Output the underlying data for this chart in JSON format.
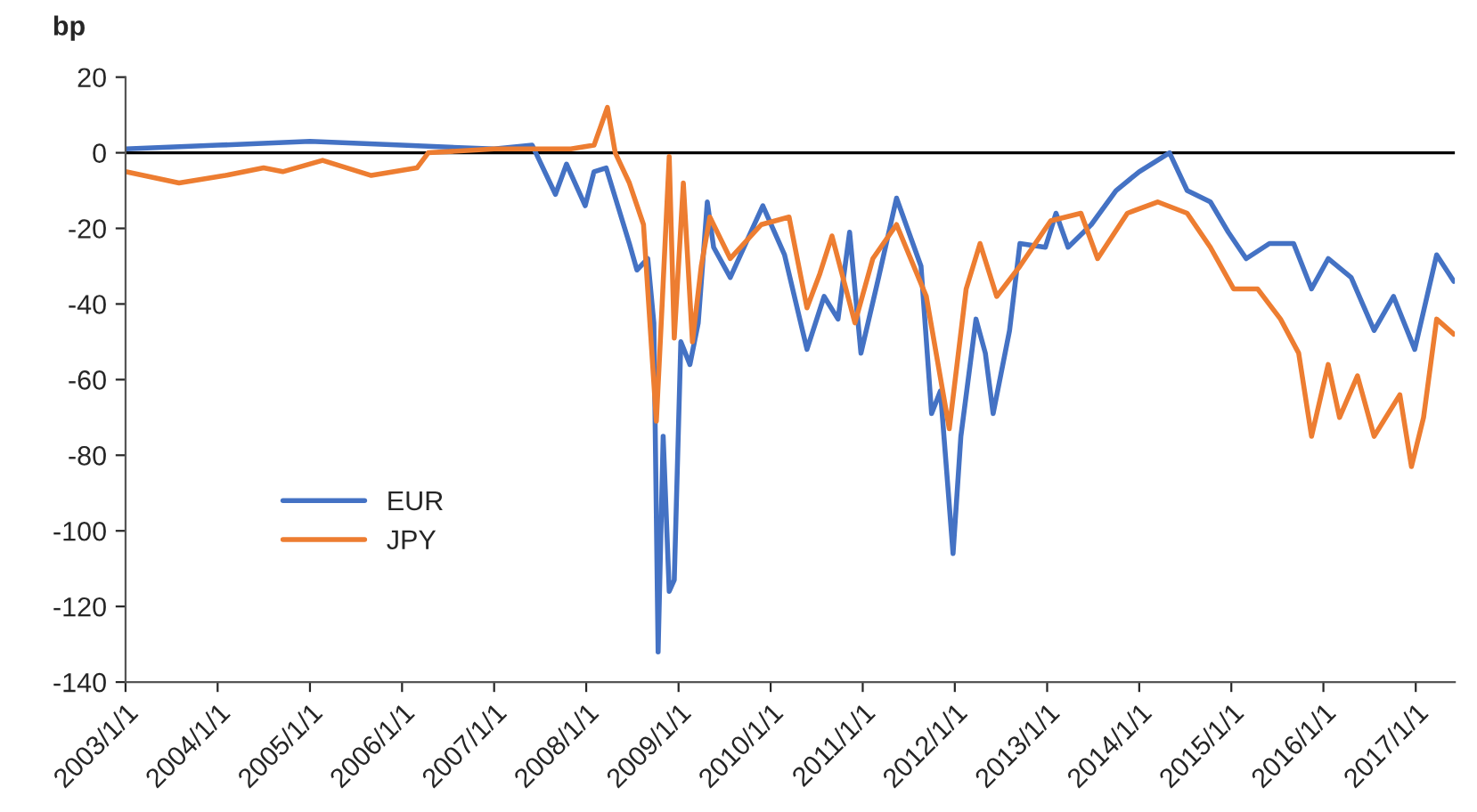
{
  "chart_data": {
    "type": "line",
    "ylabel": "bp",
    "xlim": [
      "2003-01-01",
      "2017-06-05"
    ],
    "ylim": [
      -140,
      20
    ],
    "yticks": [
      -140,
      -120,
      -100,
      -80,
      -60,
      -40,
      -20,
      0,
      20
    ],
    "xticks": [
      {
        "value": "2003-01-01",
        "label": "2003/1/1"
      },
      {
        "value": "2004-01-01",
        "label": "2004/1/1"
      },
      {
        "value": "2005-01-01",
        "label": "2005/1/1"
      },
      {
        "value": "2006-01-01",
        "label": "2006/1/1"
      },
      {
        "value": "2007-01-01",
        "label": "2007/1/1"
      },
      {
        "value": "2008-01-01",
        "label": "2008/1/1"
      },
      {
        "value": "2009-01-01",
        "label": "2009/1/1"
      },
      {
        "value": "2010-01-01",
        "label": "2010/1/1"
      },
      {
        "value": "2011-01-01",
        "label": "2011/1/1"
      },
      {
        "value": "2012-01-01",
        "label": "2012/1/1"
      },
      {
        "value": "2013-01-01",
        "label": "2013/1/1"
      },
      {
        "value": "2014-01-01",
        "label": "2014/1/1"
      },
      {
        "value": "2015-01-01",
        "label": "2015/1/1"
      },
      {
        "value": "2016-01-01",
        "label": "2016/1/1"
      },
      {
        "value": "2017-01-01",
        "label": "2017/1/1"
      }
    ],
    "grid": false,
    "legend": "bottom left",
    "marker": "none",
    "line_style": "solid",
    "ref_lines": [
      {
        "axis": "y",
        "value": 0,
        "color": "#000000"
      }
    ],
    "series": [
      {
        "name": "EUR",
        "color": "#4472c4",
        "x": [
          "2003-01-01",
          "2004-01-01",
          "2005-01-01",
          "2006-01-01",
          "2007-01-01",
          "2007-06-01",
          "2007-09-01",
          "2007-10-15",
          "2007-12-28",
          "2008-02-01",
          "2008-03-20",
          "2008-05-05",
          "2008-06-20",
          "2008-07-20",
          "2008-09-01",
          "2008-09-25",
          "2008-10-12",
          "2008-11-01",
          "2008-11-25",
          "2008-12-15",
          "2009-01-10",
          "2009-02-15",
          "2009-03-20",
          "2009-04-25",
          "2009-05-20",
          "2009-07-25",
          "2009-12-01",
          "2010-02-25",
          "2010-05-25",
          "2010-08-01",
          "2010-09-25",
          "2010-11-10",
          "2010-12-25",
          "2011-03-05",
          "2011-05-15",
          "2011-08-20",
          "2011-10-01",
          "2011-11-05",
          "2011-12-25",
          "2012-01-25",
          "2012-03-25",
          "2012-05-01",
          "2012-06-01",
          "2012-08-05",
          "2012-09-15",
          "2012-12-25",
          "2013-02-05",
          "2013-03-25",
          "2013-06-25",
          "2013-10-01",
          "2014-01-01",
          "2014-05-01",
          "2014-07-10",
          "2014-10-10",
          "2014-12-20",
          "2015-03-01",
          "2015-06-01",
          "2015-09-05",
          "2015-11-15",
          "2016-01-20",
          "2016-04-20",
          "2016-07-20",
          "2016-10-05",
          "2016-12-28",
          "2017-03-25",
          "2017-06-01"
        ],
        "values": [
          1,
          2,
          3,
          2,
          1,
          2,
          -11,
          -3,
          -14,
          -5,
          -4,
          -14,
          -24,
          -31,
          -28,
          -45,
          -132,
          -75,
          -116,
          -113,
          -50,
          -56,
          -45,
          -13,
          -25,
          -33,
          -14,
          -27,
          -52,
          -38,
          -44,
          -21,
          -53,
          -33,
          -12,
          -30,
          -69,
          -63,
          -106,
          -75,
          -44,
          -53,
          -69,
          -47,
          -24,
          -25,
          -16,
          -25,
          -19,
          -10,
          -5,
          0,
          -10,
          -13,
          -21,
          -28,
          -24,
          -24,
          -36,
          -28,
          -33,
          -47,
          -38,
          -52,
          -27,
          -34
        ]
      },
      {
        "name": "JPY",
        "color": "#ed7d31",
        "x": [
          "2003-01-01",
          "2003-08-01",
          "2004-02-01",
          "2004-07-01",
          "2004-09-15",
          "2005-02-20",
          "2005-09-01",
          "2006-03-01",
          "2006-04-15",
          "2007-01-01",
          "2007-06-01",
          "2007-11-01",
          "2008-02-01",
          "2008-03-25",
          "2008-04-25",
          "2008-06-20",
          "2008-08-15",
          "2008-10-05",
          "2008-10-28",
          "2008-11-25",
          "2008-12-15",
          "2009-01-20",
          "2009-02-25",
          "2009-04-01",
          "2009-05-05",
          "2009-07-25",
          "2009-11-25",
          "2010-03-15",
          "2010-05-25",
          "2010-07-15",
          "2010-09-01",
          "2010-12-01",
          "2011-02-10",
          "2011-05-15",
          "2011-09-10",
          "2011-12-10",
          "2012-02-15",
          "2012-04-10",
          "2012-06-15",
          "2012-09-15",
          "2013-01-15",
          "2013-05-15",
          "2013-07-20",
          "2013-11-15",
          "2014-03-15",
          "2014-07-10",
          "2014-10-10",
          "2015-01-10",
          "2015-04-15",
          "2015-07-15",
          "2015-09-25",
          "2015-11-15",
          "2016-01-20",
          "2016-03-05",
          "2016-05-15",
          "2016-07-20",
          "2016-10-30",
          "2016-12-15",
          "2017-02-01",
          "2017-03-25",
          "2017-06-01"
        ],
        "values": [
          -5,
          -8,
          -6,
          -4,
          -5,
          -2,
          -6,
          -4,
          0,
          1,
          1,
          1,
          2,
          12,
          0,
          -8,
          -19,
          -71,
          -40,
          -1,
          -49,
          -8,
          -50,
          -30,
          -17,
          -28,
          -19,
          -17,
          -41,
          -32,
          -22,
          -45,
          -28,
          -19,
          -38,
          -73,
          -36,
          -24,
          -38,
          -30,
          -18,
          -16,
          -28,
          -16,
          -13,
          -16,
          -25,
          -36,
          -36,
          -44,
          -53,
          -75,
          -56,
          -70,
          -59,
          -75,
          -64,
          -83,
          -70,
          -44,
          -48
        ]
      }
    ]
  }
}
